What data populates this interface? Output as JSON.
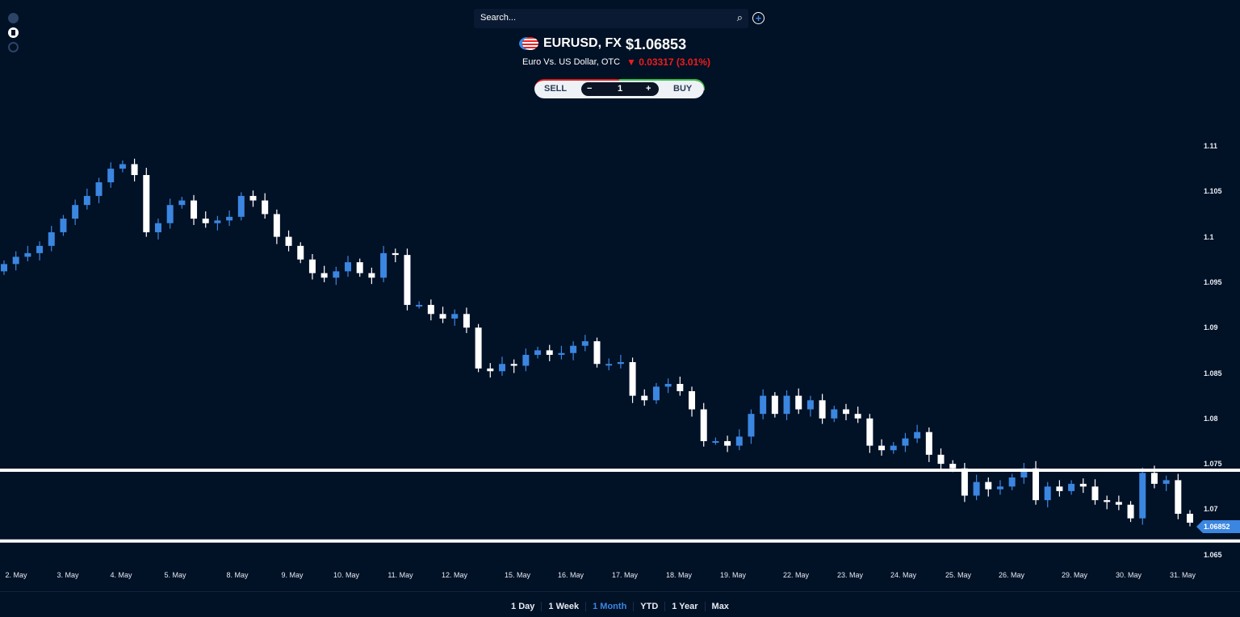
{
  "search": {
    "placeholder": "Search..."
  },
  "instrument": {
    "symbol": "EURUSD, FX",
    "price": "$1.06853",
    "name": "Euro Vs. US Dollar, OTC",
    "change": "0.03317 (3.01%)",
    "direction": "down"
  },
  "trade": {
    "sell": "SELL",
    "buy": "BUY",
    "minus": "−",
    "plus": "+",
    "quantity": "1"
  },
  "ranges": [
    "1 Day",
    "1 Week",
    "1 Month",
    "YTD",
    "1 Year",
    "Max"
  ],
  "active_range": "1 Month",
  "colors": {
    "bg": "#011126",
    "up": "#3b86e0",
    "down": "#ffffff",
    "loss": "#ef1c1c"
  },
  "chart_data": {
    "type": "candlestick",
    "ylim": [
      1.0635,
      1.1125
    ],
    "yticks": [
      "1.11",
      "1.105",
      "1.1",
      "1.095",
      "1.09",
      "1.085",
      "1.08",
      "1.075",
      "1.07",
      "1.065"
    ],
    "xticks": [
      "2. May",
      "3. May",
      "4. May",
      "5. May",
      "8. May",
      "9. May",
      "10. May",
      "11. May",
      "12. May",
      "15. May",
      "16. May",
      "17. May",
      "18. May",
      "19. May",
      "22. May",
      "23. May",
      "24. May",
      "25. May",
      "26. May",
      "29. May",
      "30. May",
      "31. May"
    ],
    "first_open": 1.0962,
    "closes": [
      1.097,
      1.0978,
      1.0982,
      1.099,
      1.1005,
      1.102,
      1.1035,
      1.1045,
      1.106,
      1.1075,
      1.108,
      1.1068,
      1.1005,
      1.1015,
      1.1035,
      1.104,
      1.102,
      1.1015,
      1.1018,
      1.1022,
      1.1045,
      1.104,
      1.1025,
      1.1,
      1.099,
      1.0975,
      1.096,
      1.0955,
      1.0962,
      1.0972,
      1.096,
      1.0955,
      1.0982,
      1.098,
      1.0925,
      1.0925,
      1.0915,
      1.091,
      1.0915,
      1.09,
      1.0855,
      1.0852,
      1.086,
      1.0858,
      1.087,
      1.0875,
      1.087,
      1.0872,
      1.088,
      1.0885,
      1.086,
      1.086,
      1.0862,
      1.0825,
      1.082,
      1.0835,
      1.0838,
      1.083,
      1.081,
      1.0775,
      1.0775,
      1.077,
      1.078,
      1.0805,
      1.0825,
      1.0805,
      1.0825,
      1.081,
      1.082,
      1.08,
      1.081,
      1.0805,
      1.08,
      1.077,
      1.0765,
      1.077,
      1.0778,
      1.0785,
      1.076,
      1.075,
      1.0745,
      1.0715,
      1.073,
      1.0722,
      1.0725,
      1.0735,
      1.0745,
      1.071,
      1.0725,
      1.072,
      1.0728,
      1.0725,
      1.071,
      1.0708,
      1.0705,
      1.069,
      1.074,
      1.0728,
      1.0732,
      1.0695,
      1.06852
    ],
    "horizontal_lines": [
      1.0743,
      1.0665
    ],
    "last_price_label": "1.06852"
  }
}
